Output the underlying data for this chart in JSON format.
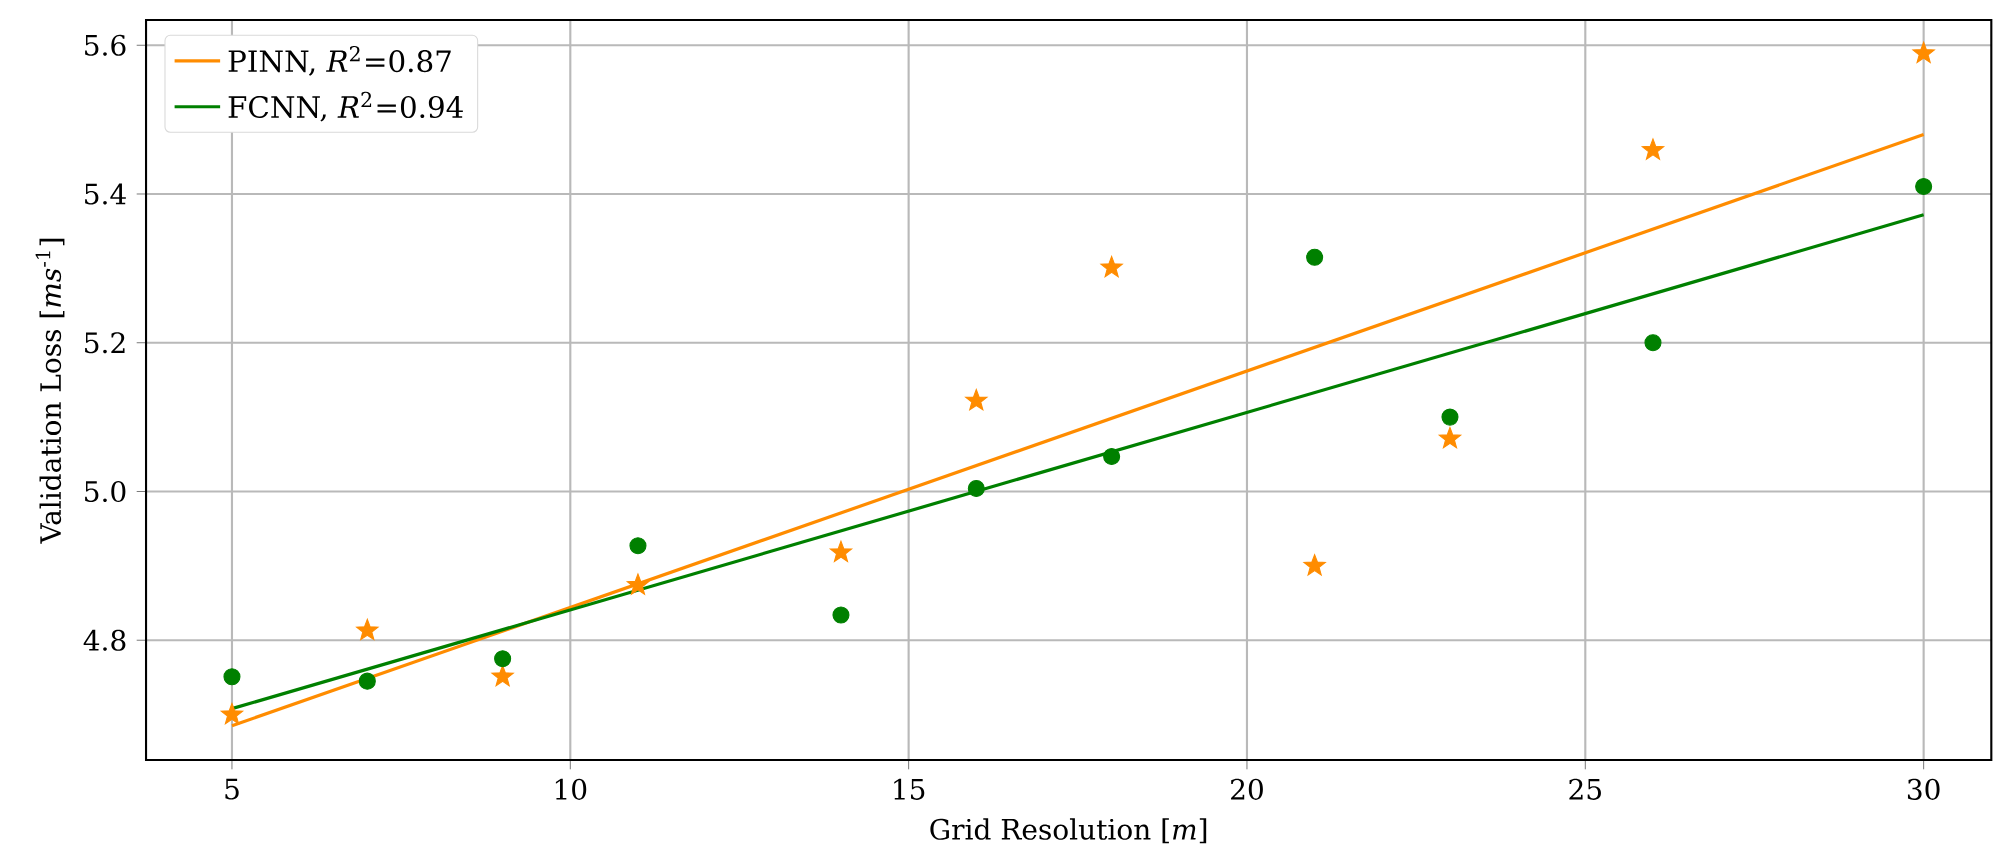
{
  "chart_data": {
    "type": "scatter",
    "xlabel": "Grid Resolution [*m*]",
    "ylabel": "Validation Loss [*ms*$^{-1}$]",
    "xlim": [
      3.73,
      31.0
    ],
    "ylim": [
      4.639,
      5.634
    ],
    "xticks": [
      5,
      10,
      15,
      20,
      25,
      30
    ],
    "yticks": [
      {
        "value": 4.8,
        "label": "4.8"
      },
      {
        "value": 5.0,
        "label": "5.0"
      },
      {
        "value": 5.2,
        "label": "5.2"
      },
      {
        "value": 5.4,
        "label": "5.4"
      },
      {
        "value": 5.6,
        "label": "5.6"
      }
    ],
    "grid": true,
    "legend": "top left",
    "series": [
      {
        "type": "line",
        "name": "PINN, *R*$^{2}$=0.87",
        "color": "#ff8c00",
        "marker": "none",
        "x": [
          5,
          30
        ],
        "values": [
          4.685,
          5.48
        ]
      },
      {
        "type": "line",
        "name": "FCNN, *R*$^{2}$=0.94",
        "color": "#008000",
        "marker": "none",
        "x": [
          5,
          30
        ],
        "values": [
          4.708,
          5.372
        ]
      },
      {
        "color": "#ff8c00",
        "marker": "star",
        "x": [
          5,
          7,
          9,
          11,
          14,
          16,
          18,
          21,
          23,
          26,
          30
        ],
        "values": [
          4.7,
          4.813,
          4.751,
          4.874,
          4.918,
          5.122,
          5.301,
          4.9,
          5.071,
          5.459,
          5.589
        ]
      },
      {
        "color": "#008000",
        "marker": "circle",
        "x": [
          5,
          7,
          9,
          11,
          14,
          16,
          18,
          21,
          23,
          26,
          30
        ],
        "values": [
          4.751,
          4.745,
          4.775,
          4.927,
          4.834,
          5.004,
          5.047,
          5.315,
          5.1,
          5.2,
          5.41
        ]
      }
    ]
  }
}
